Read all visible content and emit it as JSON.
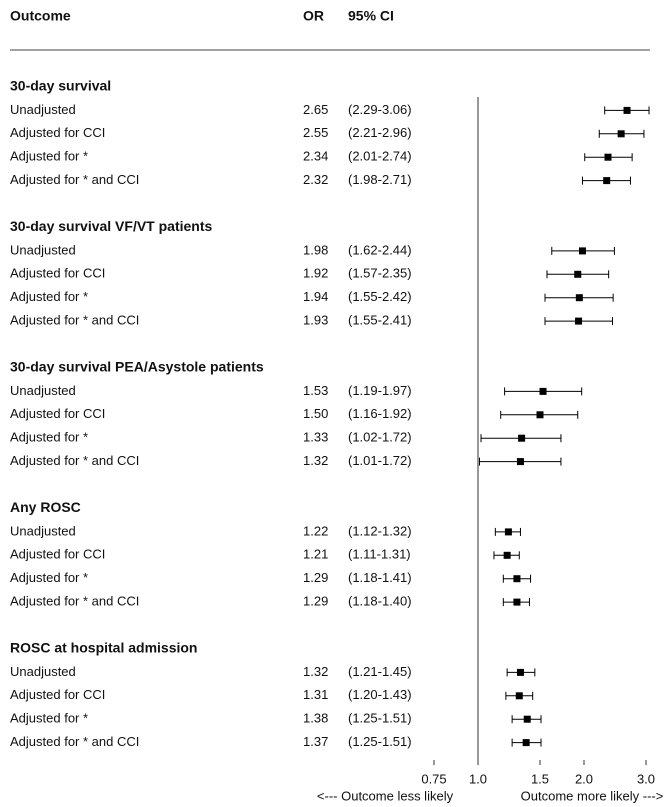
{
  "chart_data": {
    "type": "forest",
    "headers": [
      "Outcome",
      "OR",
      "95% CI"
    ],
    "log_scale": true,
    "xlim": [
      0.75,
      3.0
    ],
    "xticks": [
      0.75,
      {
        "value": 1,
        "label": "1.0"
      },
      1.5,
      {
        "value": 2,
        "label": "2.0"
      },
      {
        "value": 3,
        "label": "3.0"
      }
    ],
    "reference_line": 1,
    "xlabel_left": "<--- Outcome less likely",
    "xlabel_right": "Outcome more likely --->",
    "color": "#000000",
    "groups": [
      {
        "title": "30-day survival",
        "rows": [
          {
            "label": "Unadjusted",
            "or": 2.65,
            "or_label": "2.65",
            "lower": 2.29,
            "upper": 3.06,
            "ci_label": "(2.29-3.06)"
          },
          {
            "label": "Adjusted for CCI",
            "or": 2.55,
            "or_label": "2.55",
            "lower": 2.21,
            "upper": 2.96,
            "ci_label": "(2.21-2.96)"
          },
          {
            "label": "Adjusted for *",
            "or": 2.34,
            "or_label": "2.34",
            "lower": 2.01,
            "upper": 2.74,
            "ci_label": "(2.01-2.74)"
          },
          {
            "label": "Adjusted for * and CCI",
            "or": 2.32,
            "or_label": "2.32",
            "lower": 1.98,
            "upper": 2.71,
            "ci_label": "(1.98-2.71)"
          }
        ]
      },
      {
        "title": "30-day survival VF/VT patients",
        "rows": [
          {
            "label": "Unadjusted",
            "or": 1.98,
            "or_label": "1.98",
            "lower": 1.62,
            "upper": 2.44,
            "ci_label": "(1.62-2.44)"
          },
          {
            "label": "Adjusted for CCI",
            "or": 1.92,
            "or_label": "1.92",
            "lower": 1.57,
            "upper": 2.35,
            "ci_label": "(1.57-2.35)"
          },
          {
            "label": "Adjusted for *",
            "or": 1.94,
            "or_label": "1.94",
            "lower": 1.55,
            "upper": 2.42,
            "ci_label": "(1.55-2.42)"
          },
          {
            "label": "Adjusted for * and CCI",
            "or": 1.93,
            "or_label": "1.93",
            "lower": 1.55,
            "upper": 2.41,
            "ci_label": "(1.55-2.41)"
          }
        ]
      },
      {
        "title": "30-day survival PEA/Asystole patients",
        "rows": [
          {
            "label": "Unadjusted",
            "or": 1.53,
            "or_label": "1.53",
            "lower": 1.19,
            "upper": 1.97,
            "ci_label": "(1.19-1.97)"
          },
          {
            "label": "Adjusted for CCI",
            "or": 1.5,
            "or_label": "1.50",
            "lower": 1.16,
            "upper": 1.92,
            "ci_label": "(1.16-1.92)"
          },
          {
            "label": "Adjusted for *",
            "or": 1.33,
            "or_label": "1.33",
            "lower": 1.02,
            "upper": 1.72,
            "ci_label": "(1.02-1.72)"
          },
          {
            "label": "Adjusted for * and CCI",
            "or": 1.32,
            "or_label": "1.32",
            "lower": 1.01,
            "upper": 1.72,
            "ci_label": "(1.01-1.72)"
          }
        ]
      },
      {
        "title": "Any ROSC",
        "rows": [
          {
            "label": "Unadjusted",
            "or": 1.22,
            "or_label": "1.22",
            "lower": 1.12,
            "upper": 1.32,
            "ci_label": "(1.12-1.32)"
          },
          {
            "label": "Adjusted for CCI",
            "or": 1.21,
            "or_label": "1.21",
            "lower": 1.11,
            "upper": 1.31,
            "ci_label": "(1.11-1.31)"
          },
          {
            "label": "Adjusted for *",
            "or": 1.29,
            "or_label": "1.29",
            "lower": 1.18,
            "upper": 1.41,
            "ci_label": "(1.18-1.41)"
          },
          {
            "label": "Adjusted for * and CCI",
            "or": 1.29,
            "or_label": "1.29",
            "lower": 1.18,
            "upper": 1.4,
            "ci_label": "(1.18-1.40)"
          }
        ]
      },
      {
        "title": "ROSC at hospital admission",
        "rows": [
          {
            "label": "Unadjusted",
            "or": 1.32,
            "or_label": "1.32",
            "lower": 1.21,
            "upper": 1.45,
            "ci_label": "(1.21-1.45)"
          },
          {
            "label": "Adjusted for CCI",
            "or": 1.31,
            "or_label": "1.31",
            "lower": 1.2,
            "upper": 1.43,
            "ci_label": "(1.20-1.43)"
          },
          {
            "label": "Adjusted for *",
            "or": 1.38,
            "or_label": "1.38",
            "lower": 1.25,
            "upper": 1.51,
            "ci_label": "(1.25-1.51)"
          },
          {
            "label": "Adjusted for * and CCI",
            "or": 1.37,
            "or_label": "1.37",
            "lower": 1.25,
            "upper": 1.51,
            "ci_label": "(1.25-1.51)"
          }
        ]
      }
    ]
  }
}
